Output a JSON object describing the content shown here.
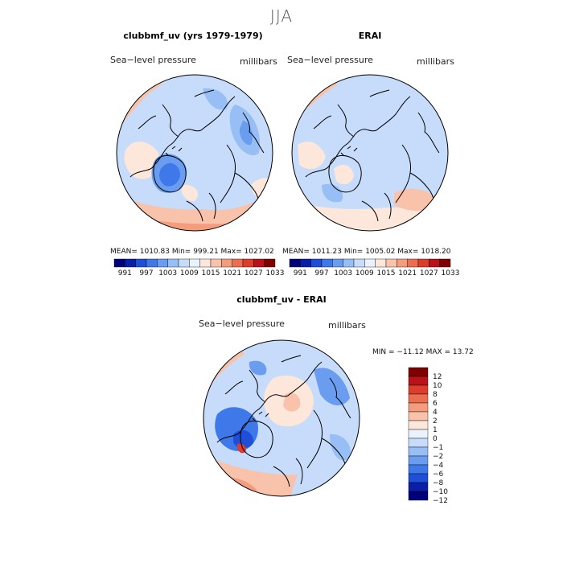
{
  "title": "JJA",
  "colors": {
    "scale": [
      "#00007a",
      "#0a1fa8",
      "#1f4fd8",
      "#3f78e8",
      "#6a9cf0",
      "#98bff5",
      "#c6dcfa",
      "#eaf3fd",
      "#fde6da",
      "#f8c3aa",
      "#f39c7e",
      "#ec6d50",
      "#dc3e2b",
      "#b8121a",
      "#800000"
    ],
    "diff_scale": [
      "#00007a",
      "#0a1fa8",
      "#1f4fd8",
      "#3f78e8",
      "#6a9cf0",
      "#98bff5",
      "#c6dcfa",
      "#eaf3fd",
      "#fde6da",
      "#f8c3aa",
      "#f39c7e",
      "#ec6d50",
      "#dc3e2b",
      "#b8121a",
      "#800000"
    ],
    "coast": "#000000"
  },
  "panels": [
    {
      "title": "clubbmf_uv (yrs 1979-1979)",
      "left_label": "Sea−level pressure",
      "right_label": "millibars",
      "stats": "MEAN= 1010.83   Min= 999.21   Max= 1027.02",
      "colorbar_labels": [
        "991",
        "997",
        "1003",
        "1009",
        "1015",
        "1021",
        "1027",
        "1033"
      ]
    },
    {
      "title": "ERAI",
      "left_label": "Sea−level pressure",
      "right_label": "millibars",
      "stats": "MEAN= 1011.23   Min= 1005.02   Max= 1018.20",
      "colorbar_labels": [
        "991",
        "997",
        "1003",
        "1009",
        "1015",
        "1021",
        "1027",
        "1033"
      ]
    },
    {
      "title": "clubbmf_uv - ERAI",
      "left_label": "Sea−level pressure",
      "right_label": "millibars",
      "stats": "MIN = −11.12 MAX =  13.72",
      "colorbar_labels": [
        "12",
        "10",
        "8",
        "6",
        "4",
        "2",
        "1",
        "0",
        "−1",
        "−2",
        "−4",
        "−6",
        "−8",
        "−10",
        "−12"
      ]
    }
  ]
}
